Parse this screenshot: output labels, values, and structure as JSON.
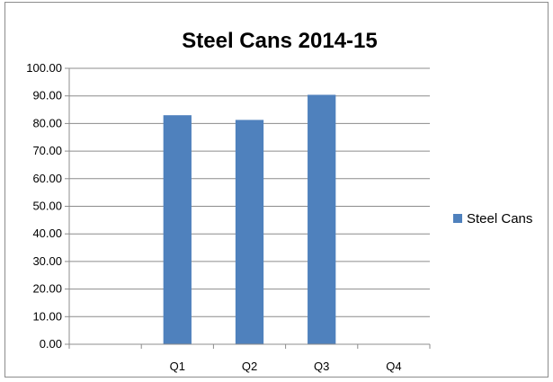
{
  "chart_data": {
    "type": "bar",
    "title": "Steel Cans 2014-15",
    "categories": [
      "",
      "Q1",
      "Q2",
      "Q3",
      "Q4"
    ],
    "series": [
      {
        "name": "Steel Cans",
        "values": [
          null,
          83.0,
          81.3,
          90.4,
          null
        ],
        "color": "#4f81bd"
      }
    ],
    "xlabel": "",
    "ylabel": "",
    "ylim": [
      0,
      100
    ],
    "yticks": [
      "0.00",
      "10.00",
      "20.00",
      "30.00",
      "40.00",
      "50.00",
      "60.00",
      "70.00",
      "80.00",
      "90.00",
      "100.00"
    ],
    "grid": true,
    "legend": "right",
    "gridline_color": "#8c8c8c"
  }
}
